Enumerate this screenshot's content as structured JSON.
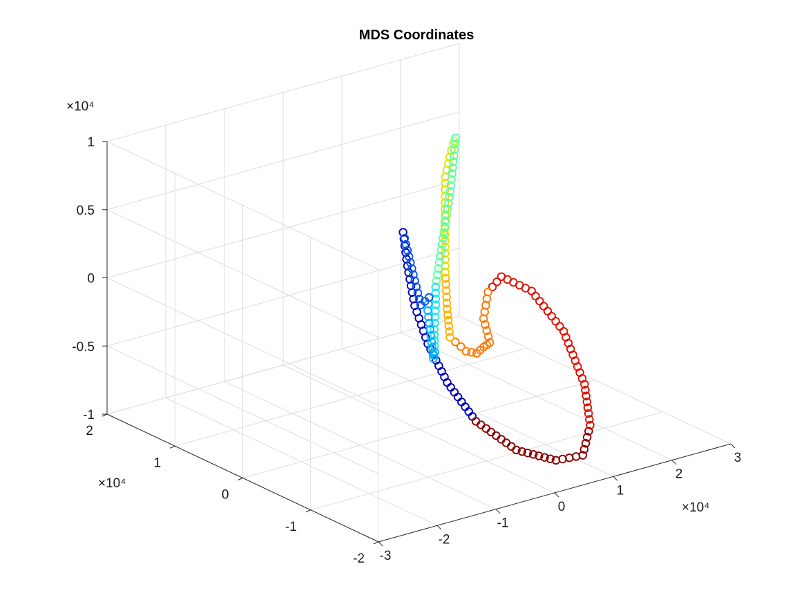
{
  "chart_data": {
    "type": "scatter",
    "title": "MDS Coordinates",
    "xlabel": "",
    "ylabel": "",
    "zlabel": "",
    "xlim": [
      -30000,
      30000
    ],
    "ylim": [
      -20000,
      20000
    ],
    "zlim": [
      -10000,
      10000
    ],
    "x_ticks": [
      "-3",
      "-2",
      "-1",
      "0",
      "1",
      "2",
      "3"
    ],
    "y_ticks": [
      "-2",
      "-1",
      "0",
      "1",
      "2"
    ],
    "z_ticks": [
      "-1",
      "-0.5",
      "0",
      "0.5",
      "1"
    ],
    "x_exponent": "×10⁴",
    "y_exponent": "×10⁴",
    "z_exponent": "×10⁴",
    "colormap": "jet",
    "marker": "open-circle",
    "grid": true,
    "series": [
      {
        "segments": [
          {
            "color": "#0000b8",
            "points": [
              [
                -5000,
                -2000,
                5500
              ],
              [
                -6000,
                -3500,
                3500
              ],
              [
                -6500,
                -5000,
                1000
              ],
              [
                -6000,
                -6500,
                -1500
              ],
              [
                -5000,
                -8500,
                -4000
              ],
              [
                -3000,
                -11000,
                -6500
              ]
            ]
          },
          {
            "color": "#8b0000",
            "points": [
              [
                -3000,
                -11000,
                -6500
              ],
              [
                1000,
                -13500,
                -8500
              ],
              [
                6000,
                -15000,
                -9500
              ],
              [
                10000,
                -15500,
                -9500
              ],
              [
                13000,
                -14000,
                -8000
              ]
            ]
          },
          {
            "color": "#dd1000",
            "points": [
              [
                13000,
                -14000,
                -8000
              ],
              [
                15500,
                -11000,
                -6000
              ],
              [
                16000,
                -7500,
                -3000
              ],
              [
                14000,
                -4500,
                -500
              ],
              [
                10000,
                -3500,
                800
              ],
              [
                6000,
                -5000,
                500
              ]
            ]
          },
          {
            "color": "#ff7700",
            "points": [
              [
                6000,
                -5000,
                500
              ],
              [
                3500,
                -6500,
                -800
              ],
              [
                4000,
                -7000,
                -2500
              ],
              [
                7000,
                -3500,
                -4000
              ],
              [
                11000,
                1000,
                -6000
              ],
              [
                15000,
                6000,
                -7500
              ],
              [
                18000,
                11000,
                -8000
              ]
            ]
          },
          {
            "color": "#ffb000",
            "points": [
              [
                18000,
                11000,
                -8000
              ],
              [
                21000,
                14000,
                -7000
              ],
              [
                23000,
                16000,
                -5000
              ]
            ]
          },
          {
            "color": "#e0e000",
            "points": [
              [
                23000,
                16000,
                -5000
              ],
              [
                23500,
                16500,
                -1500
              ],
              [
                23000,
                16000,
                2000
              ],
              [
                22000,
                14000,
                5000
              ]
            ]
          },
          {
            "color": "#b8ff40",
            "points": [
              [
                22000,
                14000,
                5000
              ],
              [
                19000,
                11000,
                6500
              ]
            ]
          },
          {
            "color": "#60ffa0",
            "points": [
              [
                19000,
                11000,
                6500
              ],
              [
                14000,
                7500,
                4000
              ],
              [
                9000,
                4500,
                1000
              ],
              [
                4000,
                1000,
                -300
              ]
            ]
          },
          {
            "color": "#20e8e8",
            "points": [
              [
                4000,
                1000,
                -300
              ],
              [
                0,
                -2500,
                -300
              ],
              [
                -2000,
                -4000,
                -1500
              ],
              [
                -2500,
                -4500,
                -3000
              ]
            ]
          },
          {
            "color": "#00b0ff",
            "points": [
              [
                -2500,
                -4500,
                -3000
              ],
              [
                -1000,
                -3000,
                -4000
              ],
              [
                1000,
                -1000,
                -3500
              ],
              [
                1500,
                0,
                -1500
              ],
              [
                0,
                -1500,
                0
              ]
            ]
          },
          {
            "color": "#0055ee",
            "points": [
              [
                0,
                -1500,
                0
              ],
              [
                -2000,
                -2000,
                -200
              ],
              [
                -5000,
                -2000,
                5500
              ]
            ]
          }
        ]
      }
    ]
  }
}
